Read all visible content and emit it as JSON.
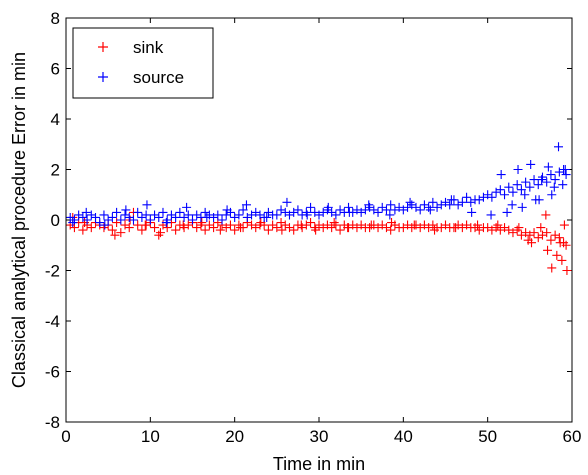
{
  "chart_data": {
    "type": "scatter",
    "xlabel": "Time in min",
    "ylabel": "Classical analytical procedure Error in min",
    "xlim": [
      0,
      60
    ],
    "ylim": [
      -8,
      8
    ],
    "xticks": [
      "0",
      "10",
      "20",
      "30",
      "40",
      "50",
      "60"
    ],
    "yticks": [
      "-8",
      "-6",
      "-4",
      "-2",
      "0",
      "2",
      "4",
      "6",
      "8"
    ],
    "grid": false,
    "legend_position": "top-left",
    "marker": "+",
    "series": [
      {
        "name": "sink",
        "color": "#ff0000",
        "x": [
          0.5,
          1,
          1.5,
          2,
          2.5,
          3,
          3.5,
          4,
          4.5,
          5,
          5.5,
          6,
          6.5,
          7,
          7.5,
          8,
          8.5,
          9,
          9.5,
          10,
          10.5,
          11,
          11.5,
          12,
          12.5,
          13,
          13.5,
          14,
          14.5,
          15,
          15.5,
          16,
          16.5,
          17,
          17.5,
          18,
          18.5,
          19,
          19.5,
          20,
          20.5,
          21,
          21.5,
          22,
          22.5,
          23,
          23.5,
          24,
          24.5,
          25,
          25.5,
          26,
          26.5,
          27,
          27.5,
          28,
          28.5,
          29,
          29.5,
          30,
          30.5,
          31,
          31.5,
          32,
          32.5,
          33,
          33.5,
          34,
          34.5,
          35,
          35.5,
          36,
          36.5,
          37,
          37.5,
          38,
          38.5,
          39,
          39.5,
          40,
          40.5,
          41,
          41.5,
          42,
          42.5,
          43,
          43.5,
          44,
          44.5,
          45,
          45.5,
          46,
          46.5,
          47,
          47.5,
          48,
          48.5,
          49,
          49.5,
          50,
          50.5,
          51,
          51.5,
          52,
          52.5,
          53,
          53.5,
          54,
          54.5,
          55,
          55.5,
          56,
          56.5,
          57,
          57.5,
          58,
          58.5,
          59,
          59.3,
          0.8,
          2.2,
          5.8,
          7.6,
          9.4,
          11.2,
          13.9,
          16.1,
          18.3,
          20.7,
          23.1,
          25.6,
          27.9,
          29.6,
          31.8,
          33.4,
          36.2,
          38.6,
          41.3,
          43.7,
          46.2,
          48.8,
          51.2,
          53.7,
          55.2,
          56.3,
          57.1,
          58.2,
          58.8,
          59.1,
          54.8,
          56.9,
          57.6,
          58.6,
          59.4
        ],
        "y": [
          -0.2,
          -0.3,
          -0.1,
          -0.4,
          -0.2,
          -0.3,
          -0.1,
          -0.2,
          -0.3,
          -0.2,
          -0.4,
          -0.1,
          -0.5,
          -0.2,
          -0.3,
          0.3,
          -0.2,
          -0.4,
          -0.2,
          -0.1,
          -0.3,
          -0.6,
          -0.2,
          -0.3,
          -0.1,
          -0.4,
          -0.2,
          -0.3,
          -0.2,
          -0.1,
          -0.3,
          -0.2,
          -0.4,
          -0.2,
          -0.3,
          -0.1,
          -0.2,
          -0.3,
          -0.2,
          -0.4,
          -0.2,
          -0.3,
          -0.1,
          -0.2,
          -0.3,
          -0.2,
          -0.2,
          -0.4,
          -0.2,
          -0.3,
          -0.1,
          -0.2,
          -0.3,
          -0.4,
          -0.2,
          -0.3,
          -0.2,
          -0.1,
          -0.3,
          -0.2,
          -0.3,
          -0.2,
          -0.3,
          -0.2,
          -0.4,
          -0.2,
          -0.3,
          -0.2,
          -0.3,
          -0.2,
          -0.3,
          -0.3,
          -0.2,
          -0.3,
          -0.2,
          -0.3,
          -0.4,
          -0.2,
          -0.3,
          -0.3,
          -0.2,
          -0.3,
          -0.2,
          -0.3,
          -0.2,
          -0.3,
          -0.2,
          -0.3,
          -0.3,
          -0.2,
          -0.3,
          -0.3,
          -0.2,
          -0.3,
          -0.2,
          -0.3,
          -0.3,
          -0.4,
          -0.3,
          -0.3,
          -0.4,
          -0.3,
          -0.4,
          -0.3,
          -0.4,
          -0.5,
          -0.4,
          -0.6,
          -0.5,
          -0.6,
          -0.5,
          -0.7,
          -0.6,
          -0.5,
          -0.8,
          -0.6,
          -0.7,
          -0.9,
          -1.0,
          0.1,
          -0.1,
          -0.6,
          0.0,
          -0.2,
          -0.5,
          -0.2,
          -0.1,
          -0.4,
          -0.3,
          -0.1,
          -0.4,
          -0.2,
          -0.4,
          -0.1,
          -0.3,
          -0.2,
          -0.1,
          -0.2,
          -0.4,
          -0.3,
          -0.2,
          -0.2,
          -0.3,
          -0.9,
          -0.3,
          -1.2,
          -1.4,
          -1.6,
          -0.2,
          -0.8,
          0.2,
          -1.9,
          -0.9,
          -2.0
        ]
      },
      {
        "name": "source",
        "color": "#0000ff",
        "x": [
          0.5,
          1,
          1.5,
          2,
          2.5,
          3,
          3.5,
          4,
          4.5,
          5,
          5.5,
          6,
          6.5,
          7,
          7.5,
          8,
          8.5,
          9,
          9.5,
          10,
          10.5,
          11,
          11.5,
          12,
          12.5,
          13,
          13.5,
          14,
          14.5,
          15,
          15.5,
          16,
          16.5,
          17,
          17.5,
          18,
          18.5,
          19,
          19.5,
          20,
          20.5,
          21,
          21.5,
          22,
          22.5,
          23,
          23.5,
          24,
          24.5,
          25,
          25.5,
          26,
          26.5,
          27,
          27.5,
          28,
          28.5,
          29,
          29.5,
          30,
          30.5,
          31,
          31.5,
          32,
          32.5,
          33,
          33.5,
          34,
          34.5,
          35,
          35.5,
          36,
          36.5,
          37,
          37.5,
          38,
          38.5,
          39,
          39.5,
          40,
          40.5,
          41,
          41.5,
          42,
          42.5,
          43,
          43.5,
          44,
          44.5,
          45,
          45.5,
          46,
          46.5,
          47,
          47.5,
          48,
          48.5,
          49,
          49.5,
          50,
          50.5,
          51,
          51.5,
          52,
          52.5,
          53,
          53.5,
          54,
          54.5,
          55,
          55.5,
          56,
          56.5,
          57,
          57.5,
          58,
          58.5,
          59,
          59.3,
          0.8,
          2.4,
          4.6,
          7.1,
          9.6,
          11.9,
          14.3,
          16.7,
          19.1,
          21.4,
          23.8,
          26.2,
          28.6,
          31.1,
          33.6,
          35.9,
          38.4,
          40.8,
          43.2,
          45.7,
          48.1,
          50.4,
          51.6,
          52.9,
          53.6,
          54.4,
          55.1,
          55.7,
          56.4,
          57.2,
          57.9,
          58.4,
          58.9,
          59.2,
          52.3,
          54.1,
          56.1,
          57.6
        ],
        "y": [
          0.1,
          0.0,
          0.2,
          0.1,
          0.0,
          0.2,
          0.1,
          -0.1,
          0.2,
          0.0,
          0.1,
          0.3,
          0.0,
          0.2,
          0.1,
          0.0,
          0.3,
          0.1,
          0.2,
          0.0,
          0.2,
          0.1,
          0.3,
          0.0,
          0.2,
          0.1,
          0.3,
          0.1,
          0.2,
          0.0,
          0.2,
          0.1,
          0.3,
          0.2,
          0.1,
          0.2,
          0.0,
          0.2,
          0.3,
          0.1,
          0.2,
          0.4,
          0.1,
          0.2,
          0.3,
          0.2,
          0.1,
          0.3,
          0.2,
          0.2,
          0.4,
          0.3,
          0.2,
          0.3,
          0.4,
          0.2,
          0.3,
          0.5,
          0.3,
          0.2,
          0.3,
          0.4,
          0.3,
          0.2,
          0.4,
          0.3,
          0.5,
          0.3,
          0.4,
          0.3,
          0.4,
          0.5,
          0.4,
          0.3,
          0.5,
          0.4,
          0.6,
          0.4,
          0.5,
          0.4,
          0.5,
          0.6,
          0.5,
          0.4,
          0.6,
          0.5,
          0.7,
          0.5,
          0.6,
          0.7,
          0.6,
          0.8,
          0.6,
          0.7,
          0.9,
          0.7,
          0.8,
          0.8,
          0.9,
          1.0,
          0.9,
          1.1,
          1.2,
          1.0,
          1.3,
          1.1,
          1.4,
          1.2,
          1.5,
          1.3,
          1.6,
          1.4,
          1.7,
          1.5,
          1.8,
          1.6,
          1.9,
          2.0,
          1.8,
          -0.1,
          0.3,
          -0.2,
          0.4,
          0.6,
          -0.1,
          0.5,
          0.1,
          0.4,
          0.6,
          0.1,
          0.7,
          0.2,
          0.5,
          0.3,
          0.6,
          0.2,
          0.7,
          0.4,
          0.8,
          0.3,
          0.2,
          1.8,
          0.6,
          2.0,
          1.0,
          2.2,
          0.8,
          1.6,
          2.1,
          1.3,
          2.9,
          1.4,
          2.0,
          0.3,
          0.5,
          0.8,
          1.0
        ]
      }
    ]
  }
}
